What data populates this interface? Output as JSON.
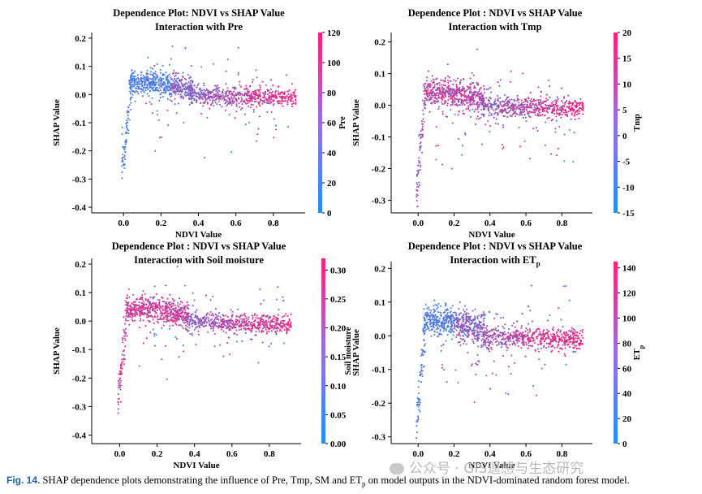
{
  "chart_data": [
    {
      "type": "scatter",
      "title": "Dependence Plot: NDVI vs SHAP Value",
      "subtitle": "Interaction with Pre",
      "xlabel": "NDVI Value",
      "ylabel": "SHAP Value",
      "xlim": [
        -0.17,
        0.97
      ],
      "ylim": [
        -0.42,
        0.22
      ],
      "xticks": [
        "0.0",
        "0.2",
        "0.4",
        "0.6",
        "0.8"
      ],
      "xtick_values": [
        0.0,
        0.2,
        0.4,
        0.6,
        0.8
      ],
      "yticks": [
        "0.2",
        "0.1",
        "0.0",
        "-0.1",
        "-0.2",
        "-0.3",
        "-0.4"
      ],
      "ytick_values": [
        0.2,
        0.1,
        0.0,
        -0.1,
        -0.2,
        -0.3,
        -0.4
      ],
      "colorbar": {
        "label": "Pre",
        "ticks": [
          "120",
          "100",
          "80",
          "60",
          "40",
          "20",
          "0"
        ],
        "tick_values": [
          120,
          100,
          80,
          60,
          40,
          20,
          0
        ],
        "range": [
          0,
          120
        ]
      },
      "low_color": "#1e90ff",
      "high_color": "#ff1e78",
      "seed": 11,
      "pattern": "pre"
    },
    {
      "type": "scatter",
      "title": "Dependence Plot : NDVI vs SHAP Value",
      "subtitle": "Interaction with Tmp",
      "xlabel": "NDVI Value",
      "ylabel": "SHAP Value",
      "xlim": [
        -0.15,
        0.97
      ],
      "ylim": [
        -0.34,
        0.23
      ],
      "xticks": [
        "0.0",
        "0.2",
        "0.4",
        "0.6",
        "0.8"
      ],
      "xtick_values": [
        0.0,
        0.2,
        0.4,
        0.6,
        0.8
      ],
      "yticks": [
        "0.2",
        "0.1",
        "0.0",
        "-0.1",
        "-0.2",
        "-0.3"
      ],
      "ytick_values": [
        0.2,
        0.1,
        0.0,
        -0.1,
        -0.2,
        -0.3
      ],
      "colorbar": {
        "label": "Tmp",
        "ticks": [
          "20",
          "15",
          "10",
          "5",
          "0",
          "-5",
          "-10",
          "-15"
        ],
        "tick_values": [
          20,
          15,
          10,
          5,
          0,
          -5,
          -10,
          -15
        ],
        "range": [
          -15,
          20
        ]
      },
      "low_color": "#1e90ff",
      "high_color": "#ff1e78",
      "seed": 23,
      "pattern": "tmp"
    },
    {
      "type": "scatter",
      "title": "Dependence Plot : NDVI vs SHAP Value",
      "subtitle": "Interaction with Soil moisture",
      "xlabel": "NDVI Value",
      "ylabel": "SHAP Value",
      "xlim": [
        -0.15,
        0.97
      ],
      "ylim": [
        -0.43,
        0.22
      ],
      "xticks": [
        "0.0",
        "0.2",
        "0.4",
        "0.6",
        "0.8"
      ],
      "xtick_values": [
        0.0,
        0.2,
        0.4,
        0.6,
        0.8
      ],
      "yticks": [
        "0.2",
        "0.1",
        "0.0",
        "-0.1",
        "-0.2",
        "-0.3",
        "-0.4"
      ],
      "ytick_values": [
        0.2,
        0.1,
        0.0,
        -0.1,
        -0.2,
        -0.3,
        -0.4
      ],
      "colorbar": {
        "label": "Soil moisture",
        "ticks": [
          "0.30",
          "0.25",
          "0.20",
          "0.15",
          "0.10",
          "0.05",
          "0.00"
        ],
        "tick_values": [
          0.3,
          0.25,
          0.2,
          0.15,
          0.1,
          0.05,
          0.0
        ],
        "range": [
          0,
          0.32
        ]
      },
      "low_color": "#1e90ff",
      "high_color": "#ff1e78",
      "seed": 37,
      "pattern": "sm"
    },
    {
      "type": "scatter",
      "title": "Dependence Plot : NDVI vs SHAP Value",
      "subtitle": "Interaction with ET",
      "subtitle_sub": "p",
      "xlabel": "NDVI Value",
      "ylabel": "SHAP Value",
      "xlim": [
        -0.15,
        0.97
      ],
      "ylim": [
        -0.32,
        0.22
      ],
      "xticks": [
        "0.0",
        "0.2",
        "0.4",
        "0.6",
        "0.8"
      ],
      "xtick_values": [
        0.0,
        0.2,
        0.4,
        0.6,
        0.8
      ],
      "yticks": [
        "0.2",
        "0.1",
        "0.0",
        "-0.1",
        "-0.2",
        "-0.3"
      ],
      "ytick_values": [
        0.2,
        0.1,
        0.0,
        -0.1,
        -0.2,
        -0.3
      ],
      "colorbar": {
        "label": "ET",
        "label_sub": "p",
        "ticks": [
          "140",
          "120",
          "100",
          "80",
          "60",
          "40",
          "20",
          "0"
        ],
        "tick_values": [
          140,
          120,
          100,
          80,
          60,
          40,
          20,
          0
        ],
        "range": [
          0,
          145
        ]
      },
      "low_color": "#1e90ff",
      "high_color": "#ff1e78",
      "seed": 53,
      "pattern": "etp"
    }
  ],
  "caption": {
    "label": "Fig. 14.",
    "text_before": " SHAP dependence plots demonstrating the influence of Pre, Tmp, SM and ET",
    "text_sub": "p",
    "text_after": " on model outputs in the NDVI-dominated random forest model."
  },
  "watermark": "公众号 · GIS遥感与生态研究"
}
